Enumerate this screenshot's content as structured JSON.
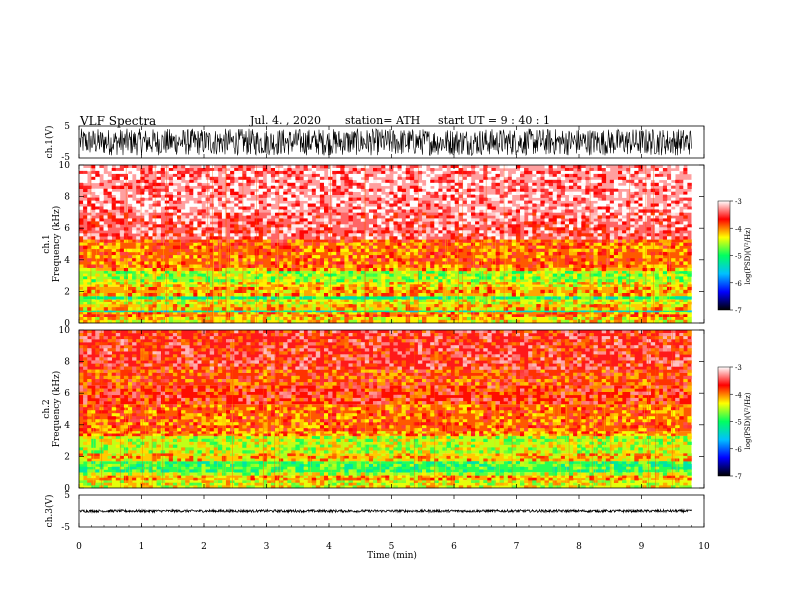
{
  "header": {
    "title": "VLF  Spectra",
    "date": "Jul.  4.  , 2020",
    "station": "station= ATH",
    "start": "start  UT  =    9  : 40 : 1"
  },
  "colorbar": {
    "label": "log(PSD)(V²/Hz)",
    "ticks": [
      "-3",
      "-4",
      "-5",
      "-6",
      "-7"
    ],
    "stops": [
      "#000000",
      "#0000ff",
      "#00c0ff",
      "#00ff60",
      "#ffff00",
      "#ff0000",
      "#ffffff"
    ]
  },
  "panels": {
    "ch1v": {
      "ylabel": "ch.1(V)",
      "ticks": [
        "5",
        "-5"
      ]
    },
    "spec1": {
      "ylabel": [
        "ch.1",
        "Frequency  (kHz)"
      ],
      "ticks": [
        "0",
        "2",
        "4",
        "6",
        "8",
        "10"
      ]
    },
    "spec2": {
      "ylabel": [
        "ch.2",
        "Frequency  (kHz)"
      ],
      "ticks": [
        "0",
        "2",
        "4",
        "6",
        "8",
        "10"
      ]
    },
    "ch3v": {
      "ylabel": "ch.3(V)",
      "ticks": [
        "5",
        "-5"
      ]
    }
  },
  "chart_data": [
    {
      "type": "line",
      "panel": "ch.1 waveform",
      "ylabel": "ch.1(V)",
      "ylim": [
        -5,
        5
      ],
      "xlim": [
        0,
        10
      ],
      "x_end_min": 9.8,
      "amplitude_range_V": [
        -4.2,
        4.2
      ]
    },
    {
      "type": "heatmap",
      "panel": "ch.1 spectrogram",
      "ylabel": "Frequency  (kHz)",
      "ylim": [
        0,
        10
      ],
      "xlim": [
        0,
        10
      ],
      "x_end_min": 9.8,
      "colorbar_range_logPSD": [
        -7,
        -3
      ],
      "bands": [
        {
          "from_kHz": 0.0,
          "to_kHz": 0.4,
          "logPSD": -4.3
        },
        {
          "from_kHz": 0.4,
          "to_kHz": 0.7,
          "logPSD": -4.0
        },
        {
          "from_kHz": 0.7,
          "to_kHz": 0.8,
          "logPSD": -5.2
        },
        {
          "from_kHz": 0.8,
          "to_kHz": 1.2,
          "logPSD": -4.2
        },
        {
          "from_kHz": 1.2,
          "to_kHz": 1.5,
          "logPSD": -4.4
        },
        {
          "from_kHz": 1.5,
          "to_kHz": 1.7,
          "logPSD": -5.0
        },
        {
          "from_kHz": 1.7,
          "to_kHz": 2.3,
          "logPSD": -4.1
        },
        {
          "from_kHz": 2.3,
          "to_kHz": 2.6,
          "logPSD": -4.3
        },
        {
          "from_kHz": 2.6,
          "to_kHz": 3.3,
          "logPSD": -4.6
        },
        {
          "from_kHz": 3.3,
          "to_kHz": 3.5,
          "logPSD": -4.1
        },
        {
          "from_kHz": 3.5,
          "to_kHz": 5.1,
          "logPSD": -3.9
        },
        {
          "from_kHz": 5.1,
          "to_kHz": 5.3,
          "logPSD": -3.8
        },
        {
          "from_kHz": 5.3,
          "to_kHz": 7.0,
          "logPSD": -3.4
        },
        {
          "from_kHz": 7.0,
          "to_kHz": 10.0,
          "logPSD": -3.25
        }
      ]
    },
    {
      "type": "heatmap",
      "panel": "ch.2 spectrogram",
      "ylabel": "Frequency  (kHz)",
      "ylim": [
        0,
        10
      ],
      "xlim": [
        0,
        10
      ],
      "x_end_min": 9.8,
      "colorbar_range_logPSD": [
        -7,
        -3
      ],
      "bands": [
        {
          "from_kHz": 0.0,
          "to_kHz": 0.5,
          "logPSD": -4.4
        },
        {
          "from_kHz": 0.5,
          "to_kHz": 0.8,
          "logPSD": -4.1
        },
        {
          "from_kHz": 0.8,
          "to_kHz": 1.0,
          "logPSD": -4.5
        },
        {
          "from_kHz": 1.0,
          "to_kHz": 1.7,
          "logPSD": -4.9
        },
        {
          "from_kHz": 1.7,
          "to_kHz": 2.2,
          "logPSD": -4.2
        },
        {
          "from_kHz": 2.2,
          "to_kHz": 3.3,
          "logPSD": -4.5
        },
        {
          "from_kHz": 3.3,
          "to_kHz": 3.6,
          "logPSD": -4.0
        },
        {
          "from_kHz": 3.6,
          "to_kHz": 5.3,
          "logPSD": -3.9
        },
        {
          "from_kHz": 5.3,
          "to_kHz": 6.5,
          "logPSD": -3.7
        },
        {
          "from_kHz": 6.5,
          "to_kHz": 7.5,
          "logPSD": -3.8
        },
        {
          "from_kHz": 7.5,
          "to_kHz": 10.0,
          "logPSD": -3.6
        }
      ]
    },
    {
      "type": "line",
      "panel": "ch.3 waveform",
      "ylabel": "ch.3(V)",
      "ylim": [
        -5,
        5
      ],
      "xlim": [
        0,
        10
      ],
      "x_end_min": 9.8,
      "amplitude_range_V": [
        -0.4,
        0.4
      ]
    }
  ],
  "xaxis": {
    "label": "Time  (min)",
    "ticks": [
      "0",
      "1",
      "2",
      "3",
      "4",
      "5",
      "6",
      "7",
      "8",
      "9",
      "10"
    ]
  }
}
